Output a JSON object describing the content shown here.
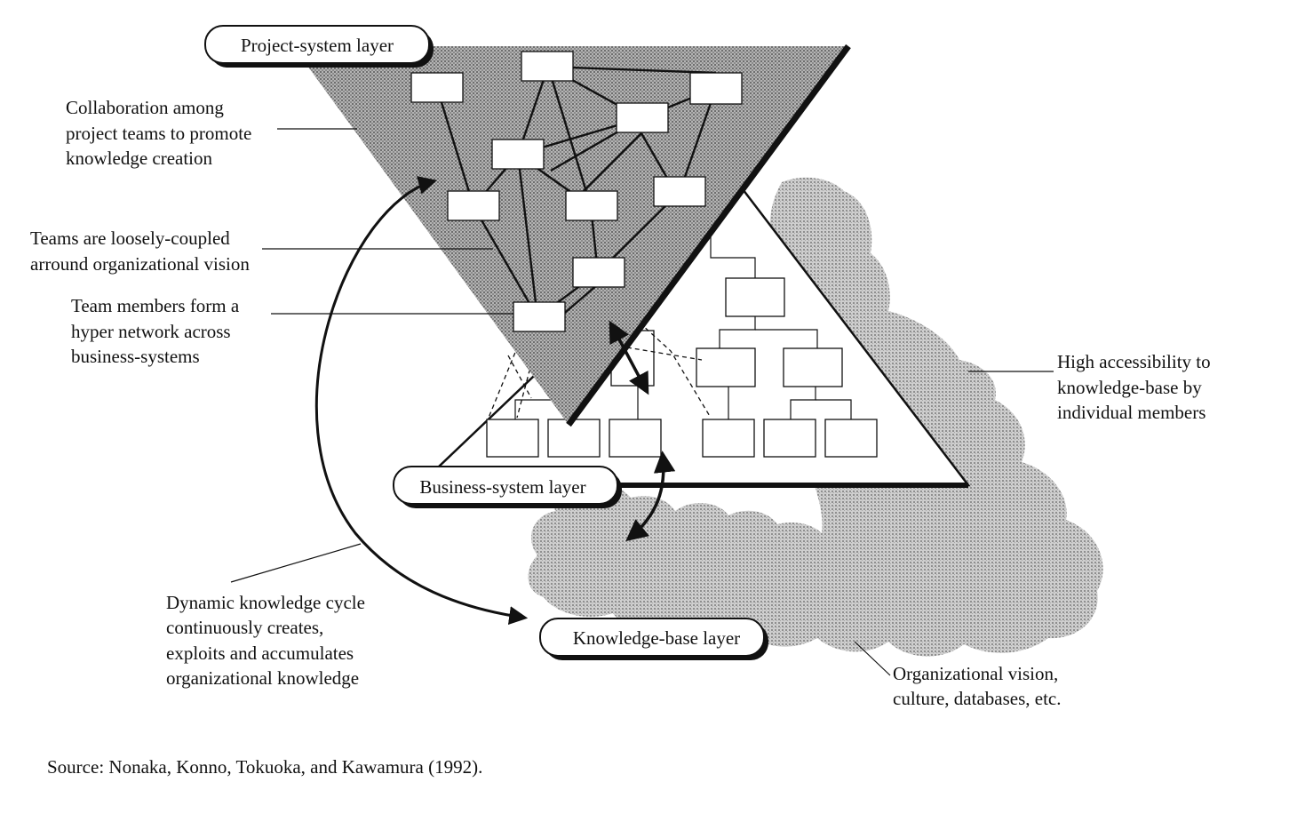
{
  "layers": {
    "project": "Project-system layer",
    "business": "Business-system layer",
    "knowledge": "Knowledge-base layer"
  },
  "annotations": {
    "collaboration": [
      "Collaboration among",
      "project teams to promote",
      "knowledge creation"
    ],
    "loosely": [
      "Teams are loosely-coupled",
      "arround organizational vision"
    ],
    "members": [
      "Team members form a",
      "hyper network across",
      "business-systems"
    ],
    "accessibility": [
      "High accessibility  to",
      "knowledge-base by",
      "individual members"
    ],
    "cycle": [
      "Dynamic knowledge cycle",
      "continuously creates,",
      "exploits and accumulates",
      "organizational knowledge"
    ],
    "vision": [
      "Organizational vision,",
      "culture, databases, etc."
    ]
  },
  "source": "Source: Nonaka, Konno, Tokuoka, and Kawamura (1992).",
  "colors": {
    "ink": "#111111",
    "shade": "#a8a8a8",
    "cloud": "#c2c2c2"
  }
}
